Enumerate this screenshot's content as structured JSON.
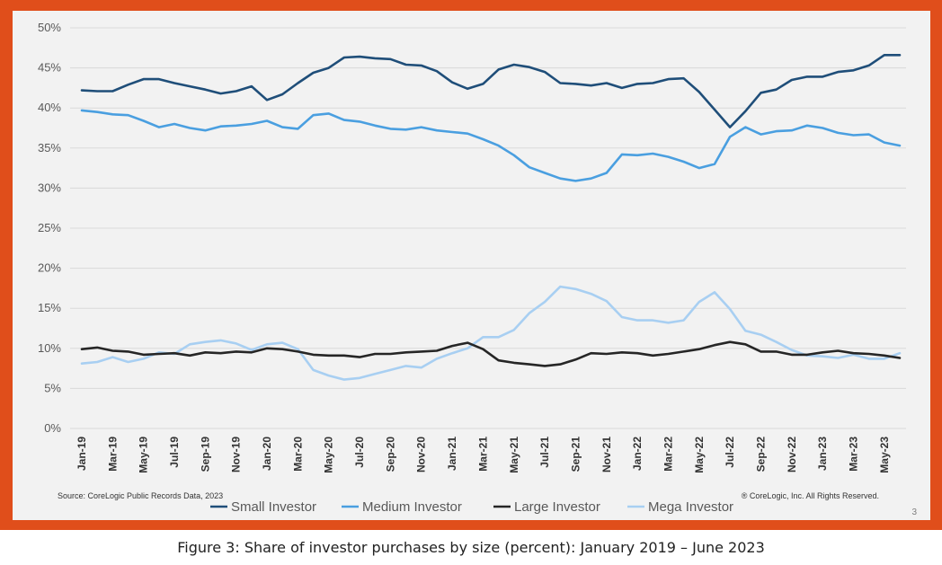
{
  "caption": "Figure 3: Share of investor purchases by size (percent): January 2019 – June 2023",
  "source_note": "Source: CoreLogic Public Records Data, 2023",
  "copyright_note": "® CoreLogic, Inc. All Rights Reserved.",
  "page_number": "3",
  "colors": {
    "frame": "#e04e1b",
    "panel": "#f2f2f2",
    "small": "#1f4e79",
    "medium": "#4a9fe0",
    "large": "#262626",
    "mega": "#a8cff2"
  },
  "chart_data": {
    "type": "line",
    "title": "",
    "xlabel": "",
    "ylabel": "",
    "ylim": [
      0,
      50
    ],
    "yticks": [
      "0%",
      "5%",
      "10%",
      "15%",
      "20%",
      "25%",
      "30%",
      "35%",
      "40%",
      "45%",
      "50%"
    ],
    "grid": true,
    "legend_position": "bottom",
    "x": [
      "Jan-19",
      "Feb-19",
      "Mar-19",
      "Apr-19",
      "May-19",
      "Jun-19",
      "Jul-19",
      "Aug-19",
      "Sep-19",
      "Oct-19",
      "Nov-19",
      "Dec-19",
      "Jan-20",
      "Feb-20",
      "Mar-20",
      "Apr-20",
      "May-20",
      "Jun-20",
      "Jul-20",
      "Aug-20",
      "Sep-20",
      "Oct-20",
      "Nov-20",
      "Dec-20",
      "Jan-21",
      "Feb-21",
      "Mar-21",
      "Apr-21",
      "May-21",
      "Jun-21",
      "Jul-21",
      "Aug-21",
      "Sep-21",
      "Oct-21",
      "Nov-21",
      "Dec-21",
      "Jan-22",
      "Feb-22",
      "Mar-22",
      "Apr-22",
      "May-22",
      "Jun-22",
      "Jul-22",
      "Aug-22",
      "Sep-22",
      "Oct-22",
      "Nov-22",
      "Dec-22",
      "Jan-23",
      "Feb-23",
      "Mar-23",
      "Apr-23",
      "May-23",
      "Jun-23"
    ],
    "x_tick_labels": [
      "Jan-19",
      "Mar-19",
      "May-19",
      "Jul-19",
      "Sep-19",
      "Nov-19",
      "Jan-20",
      "Mar-20",
      "May-20",
      "Jul-20",
      "Sep-20",
      "Nov-20",
      "Jan-21",
      "Mar-21",
      "May-21",
      "Jul-21",
      "Sep-21",
      "Nov-21",
      "Jan-22",
      "Mar-22",
      "May-22",
      "Jul-22",
      "Sep-22",
      "Nov-22",
      "Jan-23",
      "Mar-23",
      "May-23"
    ],
    "series": [
      {
        "name": "Small Investor",
        "color": "#1f4e79",
        "values": [
          42.2,
          42.1,
          42.1,
          42.9,
          43.6,
          43.6,
          43.1,
          42.7,
          42.3,
          41.8,
          42.1,
          42.7,
          41.0,
          41.7,
          43.1,
          44.4,
          45.0,
          46.3,
          46.4,
          46.2,
          46.1,
          45.4,
          45.3,
          44.6,
          43.2,
          42.4,
          43.0,
          44.8,
          45.4,
          45.1,
          44.5,
          43.1,
          43.0,
          42.8,
          43.1,
          42.5,
          43.0,
          43.1,
          43.6,
          43.7,
          42.0,
          39.8,
          37.6,
          39.6,
          41.9,
          42.3,
          43.5,
          43.9,
          43.9,
          44.5,
          44.7,
          45.3,
          46.6,
          46.6
        ]
      },
      {
        "name": "Medium Investor",
        "color": "#4a9fe0",
        "values": [
          39.7,
          39.5,
          39.2,
          39.1,
          38.4,
          37.6,
          38.0,
          37.5,
          37.2,
          37.7,
          37.8,
          38.0,
          38.4,
          37.6,
          37.4,
          39.1,
          39.3,
          38.5,
          38.3,
          37.8,
          37.4,
          37.3,
          37.6,
          37.2,
          37.0,
          36.8,
          36.1,
          35.3,
          34.1,
          32.6,
          31.9,
          31.2,
          30.9,
          31.2,
          31.9,
          34.2,
          34.1,
          34.3,
          33.9,
          33.3,
          32.5,
          33.0,
          36.4,
          37.6,
          36.7,
          37.1,
          37.2,
          37.8,
          37.5,
          36.9,
          36.6,
          36.7,
          35.7,
          35.3
        ]
      },
      {
        "name": "Large Investor",
        "color": "#262626",
        "values": [
          9.9,
          10.1,
          9.7,
          9.6,
          9.2,
          9.3,
          9.4,
          9.1,
          9.5,
          9.4,
          9.6,
          9.5,
          10.0,
          9.9,
          9.6,
          9.2,
          9.1,
          9.1,
          8.9,
          9.3,
          9.3,
          9.5,
          9.6,
          9.7,
          10.3,
          10.7,
          9.9,
          8.5,
          8.2,
          8.0,
          7.8,
          8.0,
          8.6,
          9.4,
          9.3,
          9.5,
          9.4,
          9.1,
          9.3,
          9.6,
          9.9,
          10.4,
          10.8,
          10.5,
          9.6,
          9.6,
          9.2,
          9.2,
          9.5,
          9.7,
          9.4,
          9.3,
          9.1,
          8.8
        ]
      },
      {
        "name": "Mega Investor",
        "color": "#a8cff2",
        "values": [
          8.1,
          8.3,
          8.9,
          8.3,
          8.7,
          9.5,
          9.3,
          10.5,
          10.8,
          11.0,
          10.6,
          9.8,
          10.5,
          10.7,
          9.9,
          7.3,
          6.6,
          6.1,
          6.3,
          6.8,
          7.3,
          7.8,
          7.6,
          8.7,
          9.4,
          10.0,
          11.4,
          11.4,
          12.3,
          14.4,
          15.8,
          17.7,
          17.4,
          16.8,
          15.9,
          13.9,
          13.5,
          13.5,
          13.2,
          13.5,
          15.8,
          17.0,
          14.9,
          12.2,
          11.7,
          10.8,
          9.8,
          9.1,
          9.0,
          8.8,
          9.2,
          8.7,
          8.7,
          9.4
        ]
      }
    ]
  }
}
